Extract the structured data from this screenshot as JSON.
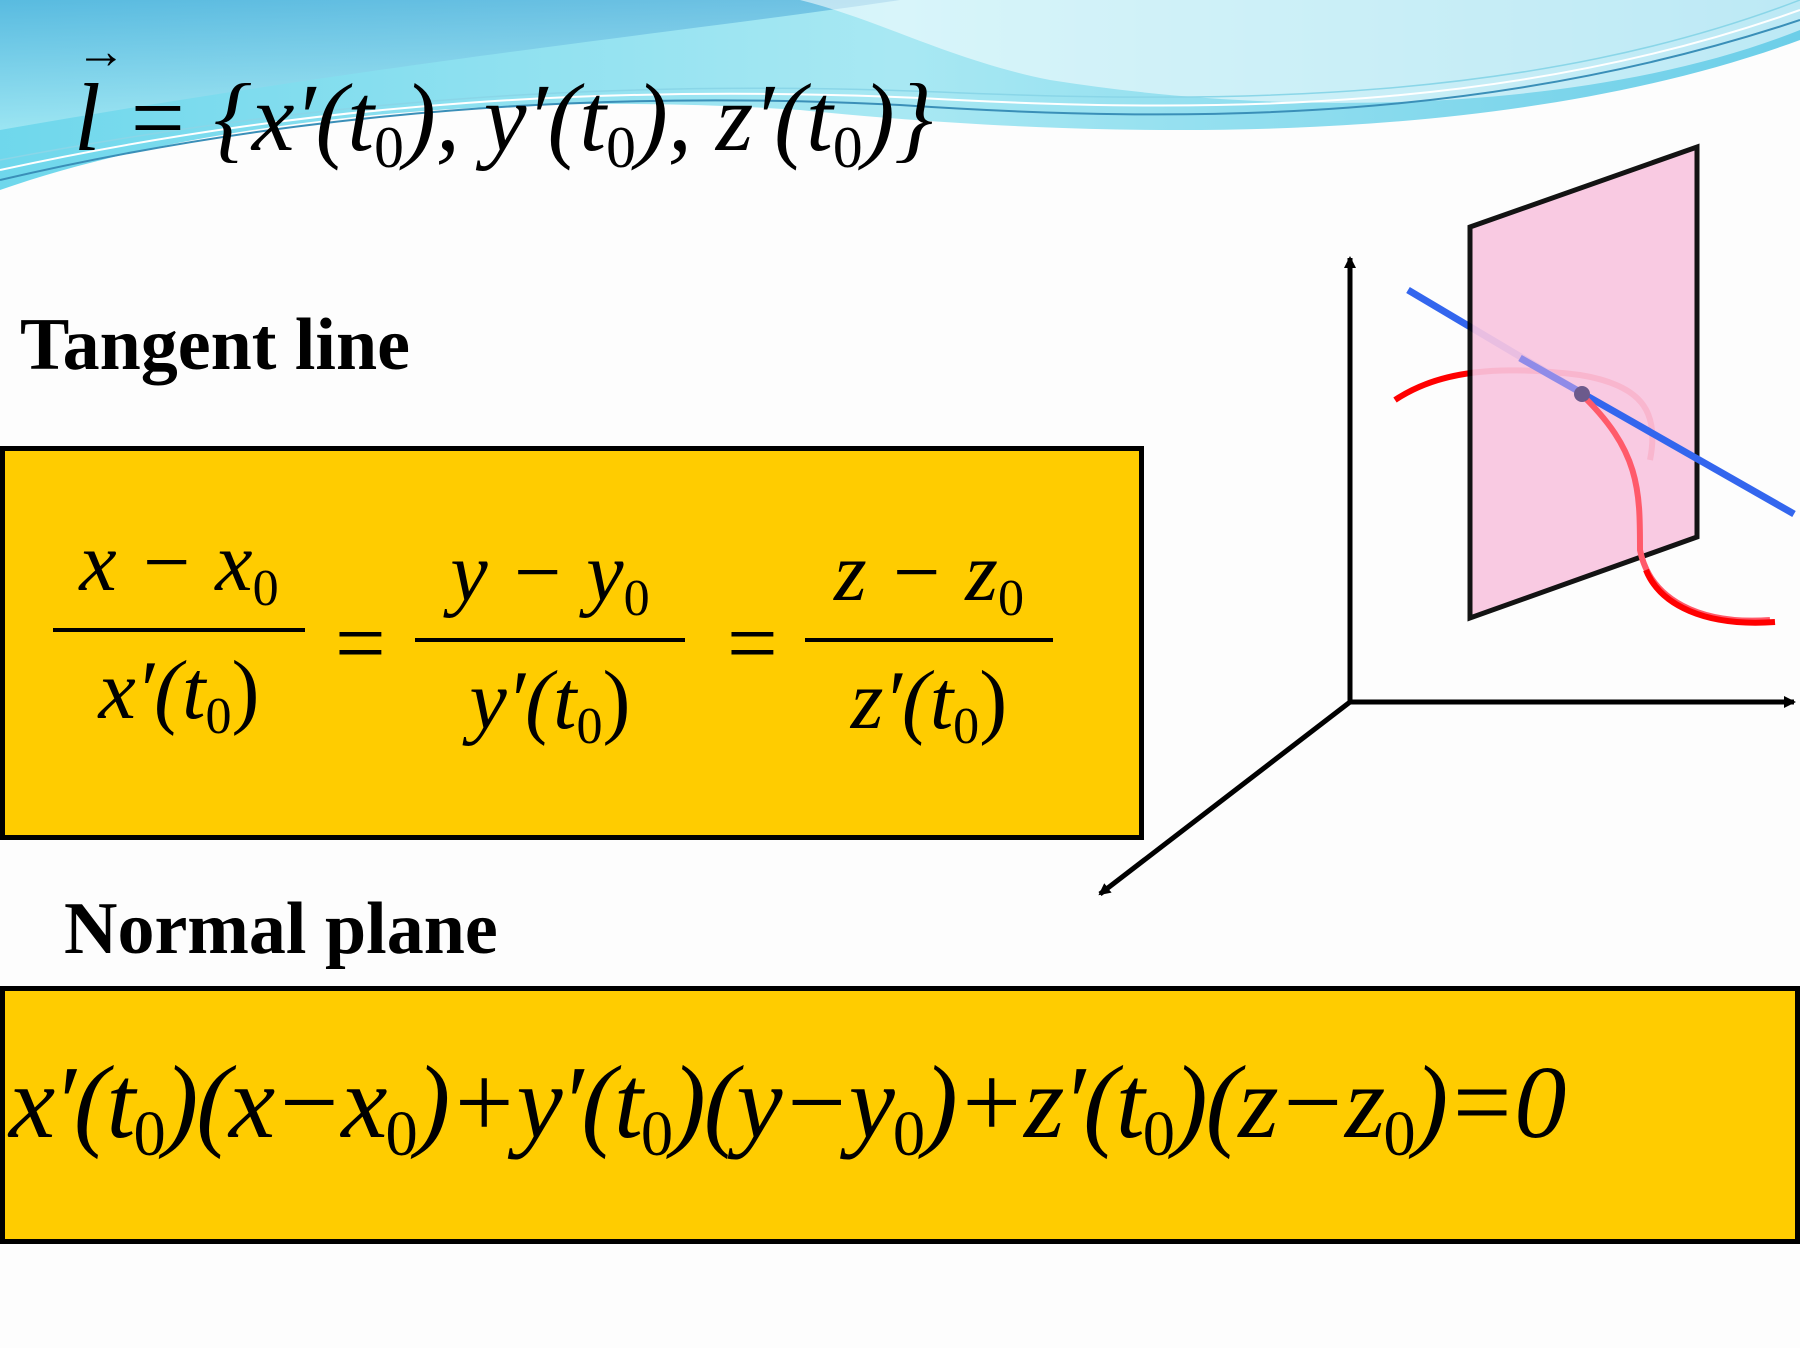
{
  "slide": {
    "vector_formula": {
      "lhs": "l",
      "arrow": "→",
      "rhs": "= {x′(t",
      "sub0": "0",
      "part2": "), y′(t",
      "sub1": "0",
      "part3": "), z′(t",
      "sub2": "0",
      "part4": ")}"
    },
    "tangent_heading": "Tangent line",
    "normal_heading": "Normal plane",
    "tangent_equation": {
      "fractions": [
        {
          "num": "x − x",
          "num_sub": "0",
          "den": "x′(t",
          "den_sub": "0",
          "den_close": ")"
        },
        {
          "num": "y − y",
          "num_sub": "0",
          "den": "y′(t",
          "den_sub": "0",
          "den_close": ")"
        },
        {
          "num": "z − z",
          "num_sub": "0",
          "den": "z′(t",
          "den_sub": "0",
          "den_close": ")"
        }
      ],
      "equals": "="
    },
    "normal_equation": {
      "text_a": "x′(t",
      "sub_a": "0",
      "text_b": ")(x−x",
      "sub_b": "0",
      "text_c": ")+y′(t",
      "sub_c": "0",
      "text_d": ")(y−y",
      "sub_d": "0",
      "text_e": ")+z′(t",
      "sub_e": "0",
      "text_f": ")(z−z",
      "sub_f": "0",
      "text_g": ")=0"
    },
    "colors": {
      "box_fill": "#ffcc00",
      "plane_fill": "#f9c6e0",
      "curve": "#ff0000",
      "tangent": "#3366ee",
      "header_wave": "#7fd8ea"
    }
  }
}
